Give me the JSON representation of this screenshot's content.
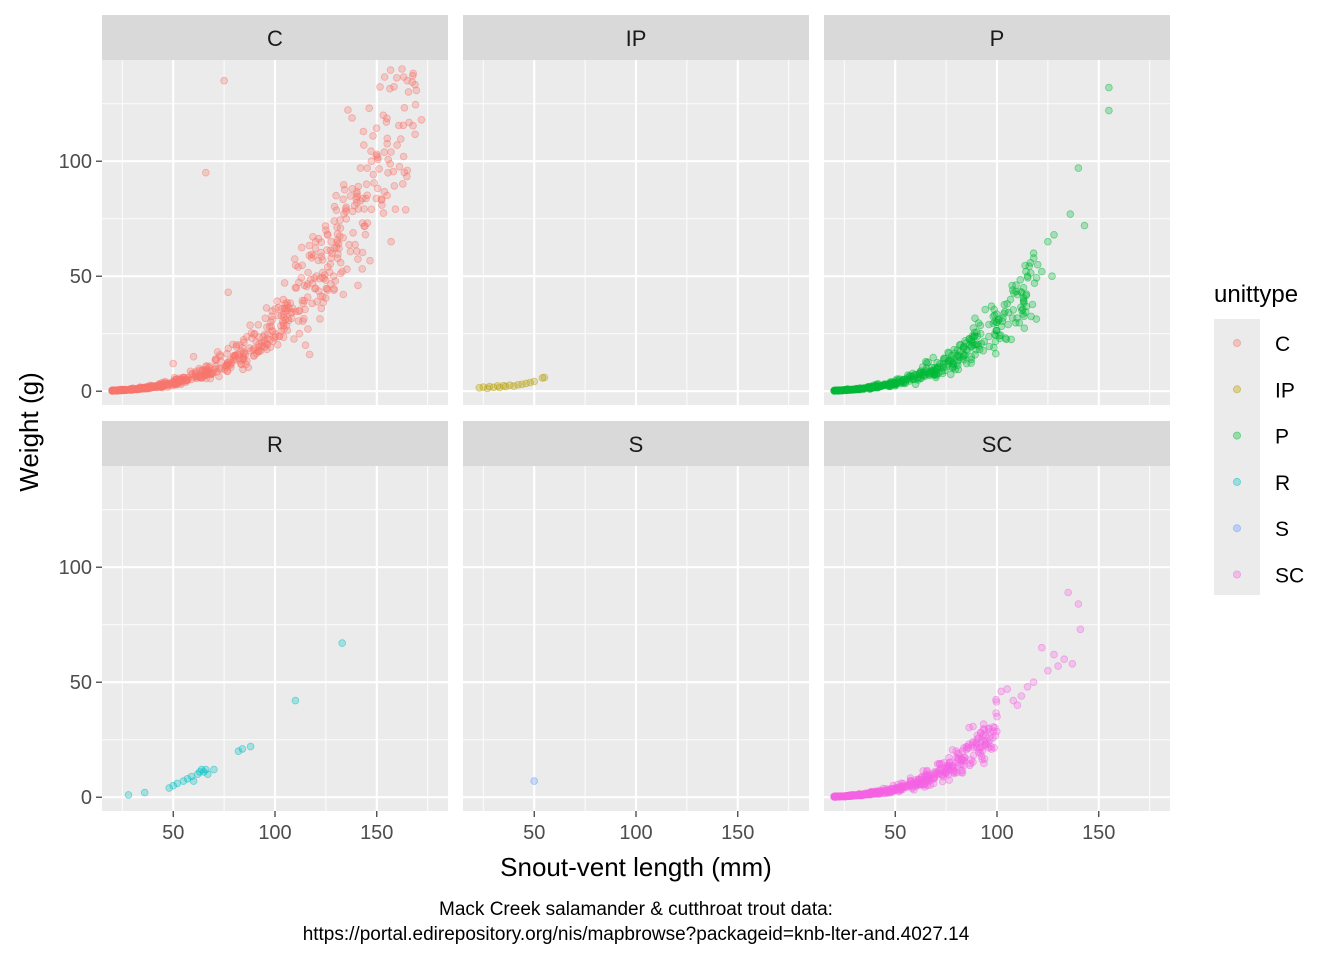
{
  "chart_data": {
    "type": "scatter",
    "faceted_by": "unittype",
    "xlabel": "Snout-vent length (mm)",
    "ylabel": "Weight (g)",
    "xlim": [
      15,
      185
    ],
    "ylim": [
      -6,
      144
    ],
    "x_ticks": [
      50,
      100,
      150
    ],
    "x_tick_labels": [
      "50",
      "100",
      "150"
    ],
    "y_ticks": [
      0,
      50,
      100
    ],
    "y_tick_labels": [
      "0",
      "50",
      "100"
    ],
    "point_alpha": 0.3,
    "caption": [
      "Mack Creek salamander & cutthroat trout data:",
      "https://portal.edirepository.org/nis/mapbrowse?packageid=knb-lter-and.4027.14"
    ],
    "legend": {
      "title": "unittype",
      "position": "right",
      "entries": [
        {
          "label": "C",
          "color": "#F8766D"
        },
        {
          "label": "IP",
          "color": "#B79F00"
        },
        {
          "label": "P",
          "color": "#00BA38"
        },
        {
          "label": "R",
          "color": "#00BFC4"
        },
        {
          "label": "S",
          "color": "#619CFF"
        },
        {
          "label": "SC",
          "color": "#F564E3"
        }
      ]
    },
    "panels": [
      {
        "label": "C",
        "color": "#F8766D",
        "trend": {
          "x": [
            20,
            170
          ],
          "scale": 1.0,
          "noise": 0.2,
          "count": 700
        },
        "points": [
          [
            75,
            135
          ],
          [
            165,
            135
          ],
          [
            172,
            118
          ],
          [
            160,
            107
          ],
          [
            165,
            96
          ],
          [
            66,
            95
          ],
          [
            150,
            103
          ],
          [
            157,
            104
          ],
          [
            142,
            97
          ],
          [
            145,
            90
          ],
          [
            138,
            88
          ],
          [
            130,
            85
          ],
          [
            125,
            70
          ],
          [
            118,
            58
          ],
          [
            128,
            60
          ],
          [
            133,
            52
          ],
          [
            115,
            20
          ],
          [
            117,
            16
          ],
          [
            77,
            43
          ],
          [
            112,
            25
          ],
          [
            60,
            15
          ],
          [
            50,
            12
          ],
          [
            90,
            25
          ],
          [
            98,
            30
          ],
          [
            105,
            38
          ],
          [
            110,
            45
          ],
          [
            120,
            65
          ],
          [
            135,
            80
          ]
        ]
      },
      {
        "label": "IP",
        "color": "#B79F00",
        "trend": null,
        "points": [
          [
            23,
            1.5
          ],
          [
            25,
            1.8
          ],
          [
            27,
            1.2
          ],
          [
            28,
            2.0
          ],
          [
            30,
            1.7
          ],
          [
            32,
            2.3
          ],
          [
            33,
            1.6
          ],
          [
            35,
            2.4
          ],
          [
            36,
            2.0
          ],
          [
            38,
            2.6
          ],
          [
            40,
            2.2
          ],
          [
            42,
            2.8
          ],
          [
            44,
            3.0
          ],
          [
            46,
            3.4
          ],
          [
            48,
            3.8
          ],
          [
            50,
            4.2
          ],
          [
            54,
            5.8
          ],
          [
            55,
            6.0
          ]
        ]
      },
      {
        "label": "P",
        "color": "#00BA38",
        "trend": {
          "x": [
            20,
            120
          ],
          "scale": 1.0,
          "noise": 0.2,
          "count": 450
        },
        "points": [
          [
            155,
            132
          ],
          [
            155,
            122
          ],
          [
            140,
            97
          ],
          [
            143,
            72
          ],
          [
            136,
            77
          ],
          [
            128,
            68
          ],
          [
            125,
            65
          ],
          [
            120,
            55
          ],
          [
            118,
            60
          ],
          [
            115,
            50
          ],
          [
            110,
            42
          ],
          [
            105,
            38
          ],
          [
            100,
            30
          ],
          [
            96,
            29
          ],
          [
            92,
            25
          ],
          [
            88,
            21
          ],
          [
            70,
            6
          ],
          [
            60,
            3
          ],
          [
            85,
            18
          ],
          [
            113,
            45
          ],
          [
            122,
            52
          ],
          [
            127,
            50
          ]
        ]
      },
      {
        "label": "R",
        "color": "#00BFC4",
        "trend": null,
        "points": [
          [
            28,
            1
          ],
          [
            36,
            2
          ],
          [
            48,
            4
          ],
          [
            50,
            5
          ],
          [
            52,
            6
          ],
          [
            55,
            7
          ],
          [
            57,
            8
          ],
          [
            59,
            9
          ],
          [
            60,
            7
          ],
          [
            62,
            10
          ],
          [
            63,
            11
          ],
          [
            64,
            12
          ],
          [
            65,
            11
          ],
          [
            66,
            12
          ],
          [
            67,
            10
          ],
          [
            70,
            12
          ],
          [
            82,
            20
          ],
          [
            84,
            21
          ],
          [
            88,
            22
          ],
          [
            110,
            42
          ],
          [
            133,
            67
          ]
        ]
      },
      {
        "label": "S",
        "color": "#619CFF",
        "trend": null,
        "points": [
          [
            50,
            7
          ]
        ]
      },
      {
        "label": "SC",
        "color": "#F564E3",
        "trend": {
          "x": [
            20,
            100
          ],
          "scale": 1.0,
          "noise": 0.2,
          "count": 500
        },
        "points": [
          [
            135,
            89
          ],
          [
            140,
            84
          ],
          [
            141,
            73
          ],
          [
            130,
            57
          ],
          [
            128,
            62
          ],
          [
            122,
            65
          ],
          [
            118,
            50
          ],
          [
            115,
            48
          ],
          [
            112,
            44
          ],
          [
            108,
            42
          ],
          [
            105,
            47
          ],
          [
            102,
            46
          ],
          [
            100,
            35
          ],
          [
            96,
            30
          ],
          [
            92,
            28
          ],
          [
            88,
            24
          ],
          [
            85,
            22
          ],
          [
            83,
            20
          ],
          [
            80,
            20
          ],
          [
            110,
            40
          ],
          [
            125,
            55
          ],
          [
            133,
            60
          ],
          [
            137,
            58
          ]
        ]
      }
    ]
  }
}
